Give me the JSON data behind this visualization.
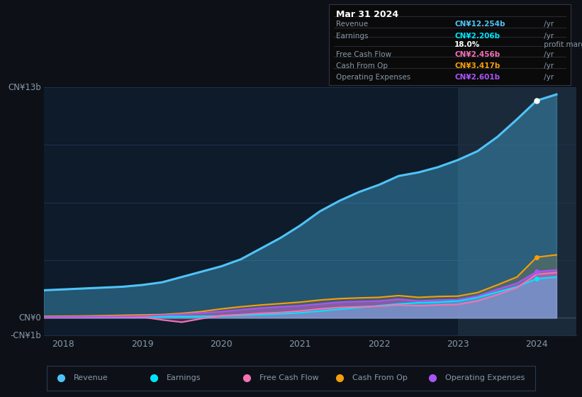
{
  "background_color": "#0d1117",
  "plot_bg_color": "#0d1b2a",
  "revenue_color": "#4fc3f7",
  "earnings_color": "#00e5ff",
  "fcf_color": "#f472b6",
  "cashop_color": "#f59e0b",
  "opex_color": "#a855f7",
  "gridline_color": "#1e3050",
  "zero_line_color": "#3a4a5a",
  "text_color": "#8899aa",
  "highlight_color": "#1a2a3a",
  "years": [
    2017.75,
    2018.0,
    2018.25,
    2018.5,
    2018.75,
    2019.0,
    2019.25,
    2019.5,
    2019.75,
    2020.0,
    2020.25,
    2020.5,
    2020.75,
    2021.0,
    2021.25,
    2021.5,
    2021.75,
    2022.0,
    2022.25,
    2022.5,
    2022.75,
    2023.0,
    2023.25,
    2023.5,
    2023.75,
    2024.0,
    2024.25
  ],
  "revenue": [
    1.55,
    1.6,
    1.65,
    1.7,
    1.75,
    1.85,
    2.0,
    2.3,
    2.6,
    2.9,
    3.3,
    3.9,
    4.5,
    5.2,
    6.0,
    6.6,
    7.1,
    7.5,
    8.0,
    8.2,
    8.5,
    8.9,
    9.4,
    10.2,
    11.2,
    12.254,
    12.6
  ],
  "earnings": [
    0.05,
    0.06,
    0.06,
    0.06,
    0.07,
    0.07,
    0.07,
    0.07,
    0.08,
    0.1,
    0.14,
    0.18,
    0.22,
    0.28,
    0.38,
    0.48,
    0.58,
    0.68,
    0.78,
    0.85,
    0.88,
    0.95,
    1.15,
    1.45,
    1.75,
    2.206,
    2.3
  ],
  "free_cash_flow": [
    0.02,
    0.02,
    0.03,
    0.04,
    0.04,
    0.04,
    -0.12,
    -0.25,
    -0.05,
    0.12,
    0.18,
    0.25,
    0.3,
    0.38,
    0.5,
    0.58,
    0.62,
    0.65,
    0.72,
    0.68,
    0.72,
    0.75,
    0.95,
    1.3,
    1.7,
    2.456,
    2.55
  ],
  "cash_from_op": [
    0.08,
    0.09,
    0.1,
    0.12,
    0.14,
    0.16,
    0.18,
    0.25,
    0.35,
    0.5,
    0.62,
    0.72,
    0.8,
    0.88,
    1.0,
    1.08,
    1.12,
    1.15,
    1.25,
    1.15,
    1.2,
    1.22,
    1.42,
    1.85,
    2.3,
    3.417,
    3.55
  ],
  "op_expenses": [
    0.04,
    0.05,
    0.06,
    0.07,
    0.08,
    0.1,
    0.14,
    0.2,
    0.27,
    0.35,
    0.45,
    0.55,
    0.62,
    0.68,
    0.78,
    0.88,
    0.92,
    0.95,
    1.05,
    0.95,
    1.0,
    1.02,
    1.22,
    1.6,
    1.95,
    2.601,
    2.7
  ],
  "ylim": [
    -1.0,
    13.0
  ],
  "xlim": [
    2017.75,
    2024.5
  ],
  "xtick_years": [
    2018,
    2019,
    2020,
    2021,
    2022,
    2023,
    2024
  ],
  "highlight_x_start": 2023.0,
  "highlight_x_end": 2024.5,
  "legend_items": [
    {
      "label": "Revenue",
      "color": "#4fc3f7"
    },
    {
      "label": "Earnings",
      "color": "#00e5ff"
    },
    {
      "label": "Free Cash Flow",
      "color": "#f472b6"
    },
    {
      "label": "Cash From Op",
      "color": "#f59e0b"
    },
    {
      "label": "Operating Expenses",
      "color": "#a855f7"
    }
  ],
  "info_box": {
    "date": "Mar 31 2024",
    "rows": [
      {
        "label": "Revenue",
        "value": "CN¥12.254b",
        "suffix": " /yr",
        "value_color": "#4fc3f7",
        "label_color": "#8899aa"
      },
      {
        "label": "Earnings",
        "value": "CN¥2.206b",
        "suffix": " /yr",
        "value_color": "#00e5ff",
        "label_color": "#8899aa"
      },
      {
        "label": "",
        "value": "18.0%",
        "suffix": " profit margin",
        "value_color": "#ffffff",
        "label_color": "#ffffff"
      },
      {
        "label": "Free Cash Flow",
        "value": "CN¥2.456b",
        "suffix": " /yr",
        "value_color": "#f472b6",
        "label_color": "#8899aa"
      },
      {
        "label": "Cash From Op",
        "value": "CN¥3.417b",
        "suffix": " /yr",
        "value_color": "#f59e0b",
        "label_color": "#8899aa"
      },
      {
        "label": "Operating Expenses",
        "value": "CN¥2.601b",
        "suffix": " /yr",
        "value_color": "#a855f7",
        "label_color": "#8899aa"
      }
    ]
  }
}
